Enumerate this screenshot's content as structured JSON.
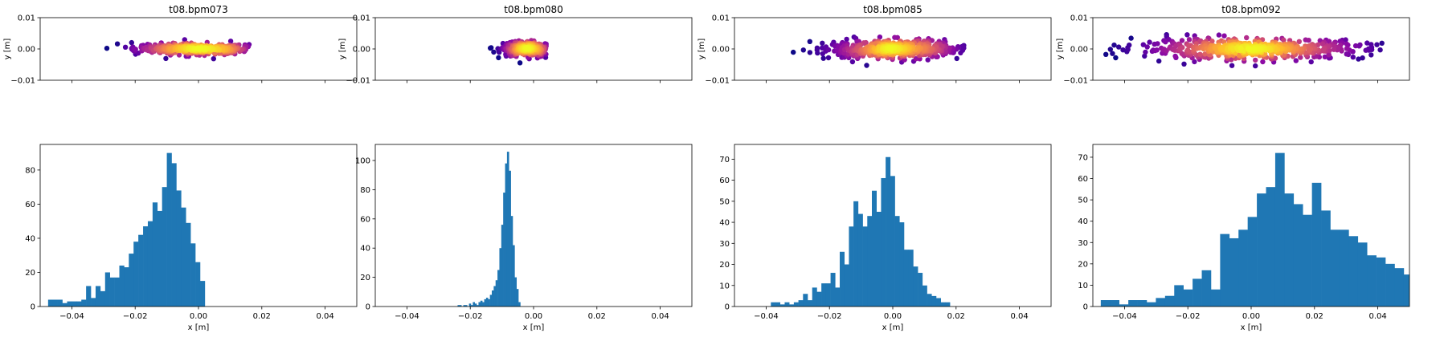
{
  "chart_data": [
    {
      "type": "scatter",
      "panel": "top",
      "title": "t08.bpm073",
      "xlabel": "",
      "ylabel": "y [m]",
      "xlim": [
        -0.05,
        0.05
      ],
      "ylim": [
        -0.01,
        0.01
      ],
      "xticks": [
        -0.04,
        -0.02,
        0.0,
        0.02,
        0.04
      ],
      "yticks": [
        -0.01,
        0.0,
        0.01
      ],
      "ytick_labels": [
        "−0.01",
        "0.00",
        "0.01"
      ],
      "colormap": "plasma (density)",
      "x_center": 0.0,
      "x_spread": 0.01,
      "x_range": [
        -0.05,
        0.016
      ],
      "y_spread": 0.0009,
      "n_points": 400
    },
    {
      "type": "scatter",
      "panel": "top",
      "title": "t08.bpm080",
      "xlabel": "",
      "ylabel": "y [m]",
      "xlim": [
        -0.05,
        0.05
      ],
      "ylim": [
        -0.01,
        0.01
      ],
      "xticks": [
        -0.04,
        -0.02,
        0.0,
        0.02,
        0.04
      ],
      "yticks": [
        -0.01,
        0.0,
        0.01
      ],
      "ytick_labels": [
        "−0.01",
        "0.00",
        "0.01"
      ],
      "colormap": "plasma (density)",
      "x_center": -0.002,
      "x_spread": 0.004,
      "x_range": [
        -0.024,
        0.004
      ],
      "y_spread": 0.0011,
      "n_points": 350
    },
    {
      "type": "scatter",
      "panel": "top",
      "title": "t08.bpm085",
      "xlabel": "",
      "ylabel": "y [m]",
      "xlim": [
        -0.05,
        0.05
      ],
      "ylim": [
        -0.01,
        0.01
      ],
      "xticks": [
        -0.04,
        -0.02,
        0.0,
        0.02,
        0.04
      ],
      "yticks": [
        -0.01,
        0.0,
        0.01
      ],
      "ytick_labels": [
        "−0.01",
        "0.00",
        "0.01"
      ],
      "colormap": "plasma (density)",
      "x_center": 0.0,
      "x_spread": 0.01,
      "x_range": [
        -0.039,
        0.024
      ],
      "y_spread": 0.0014,
      "n_points": 500
    },
    {
      "type": "scatter",
      "panel": "top",
      "title": "t08.bpm092",
      "xlabel": "",
      "ylabel": "y [m]",
      "xlim": [
        -0.05,
        0.05
      ],
      "ylim": [
        -0.01,
        0.01
      ],
      "xticks": [
        -0.04,
        -0.02,
        0.0,
        0.02,
        0.04
      ],
      "yticks": [
        -0.01,
        0.0,
        0.01
      ],
      "ytick_labels": [
        "−0.01",
        "0.00",
        "0.01"
      ],
      "colormap": "plasma (density)",
      "x_center": 0.0,
      "x_spread": 0.018,
      "x_range": [
        -0.047,
        0.046
      ],
      "y_spread": 0.0016,
      "n_points": 550
    },
    {
      "type": "bar",
      "panel": "bottom",
      "title": "",
      "xlabel": "x [m]",
      "ylabel": "",
      "xlim": [
        -0.05,
        0.05
      ],
      "ylim": [
        0,
        95
      ],
      "xticks": [
        -0.04,
        -0.02,
        0.0,
        0.02,
        0.04
      ],
      "xtick_labels": [
        "−0.04",
        "−0.02",
        "0.00",
        "0.02",
        "0.04"
      ],
      "yticks": [
        0,
        20,
        40,
        60,
        80
      ],
      "bin_start": -0.0475,
      "bin_width": 0.0015,
      "values": [
        4,
        4,
        4,
        2,
        3,
        3,
        3,
        4,
        12,
        5,
        12,
        9,
        20,
        17,
        17,
        24,
        23,
        31,
        38,
        42,
        47,
        50,
        61,
        56,
        70,
        90,
        84,
        68,
        58,
        49,
        37,
        26,
        15
      ]
    },
    {
      "type": "bar",
      "panel": "bottom",
      "title": "",
      "xlabel": "x [m]",
      "ylabel": "",
      "xlim": [
        -0.05,
        0.05
      ],
      "ylim": [
        0,
        111
      ],
      "xticks": [
        -0.04,
        -0.02,
        0.0,
        0.02,
        0.04
      ],
      "xtick_labels": [
        "−0.04",
        "−0.02",
        "0.00",
        "0.02",
        "0.04"
      ],
      "yticks": [
        0,
        20,
        40,
        60,
        80,
        100
      ],
      "bin_start": -0.024,
      "bin_width": 0.0006,
      "values": [
        1,
        1,
        0,
        1,
        1,
        0,
        2,
        1,
        3,
        2,
        1,
        3,
        4,
        3,
        5,
        6,
        5,
        8,
        11,
        14,
        18,
        25,
        40,
        56,
        78,
        98,
        106,
        93,
        62,
        42,
        20,
        12,
        3
      ]
    },
    {
      "type": "bar",
      "panel": "bottom",
      "title": "",
      "xlabel": "x [m]",
      "ylabel": "",
      "xlim": [
        -0.05,
        0.05
      ],
      "ylim": [
        0,
        77
      ],
      "xticks": [
        -0.04,
        -0.02,
        0.0,
        0.02,
        0.04
      ],
      "xtick_labels": [
        "−0.04",
        "−0.02",
        "0.00",
        "0.02",
        "0.04"
      ],
      "yticks": [
        0,
        10,
        20,
        30,
        40,
        50,
        60,
        70
      ],
      "bin_start": -0.0385,
      "bin_width": 0.00145,
      "values": [
        2,
        2,
        1,
        2,
        1,
        2,
        3,
        6,
        3,
        9,
        7,
        11,
        11,
        16,
        9,
        26,
        20,
        38,
        50,
        44,
        38,
        43,
        55,
        45,
        61,
        71,
        62,
        43,
        40,
        27,
        27,
        19,
        16,
        10,
        6,
        5,
        4,
        2,
        2
      ]
    },
    {
      "type": "bar",
      "panel": "bottom",
      "title": "",
      "xlabel": "x [m]",
      "ylabel": "",
      "xlim": [
        -0.05,
        0.05
      ],
      "ylim": [
        0,
        76
      ],
      "xticks": [
        -0.04,
        -0.02,
        0.0,
        0.02,
        0.04
      ],
      "xtick_labels": [
        "−0.04",
        "−0.02",
        "0.00",
        "0.02",
        "0.04"
      ],
      "yticks": [
        0,
        10,
        20,
        30,
        40,
        50,
        60,
        70
      ],
      "bin_start": -0.0475,
      "bin_width": 0.0029,
      "values": [
        3,
        3,
        1,
        3,
        3,
        2,
        4,
        5,
        10,
        8,
        13,
        17,
        8,
        34,
        32,
        36,
        42,
        53,
        56,
        72,
        53,
        48,
        43,
        58,
        45,
        36,
        36,
        33,
        30,
        24,
        23,
        20,
        18,
        15,
        11,
        12,
        8,
        5,
        5,
        3
      ]
    }
  ]
}
